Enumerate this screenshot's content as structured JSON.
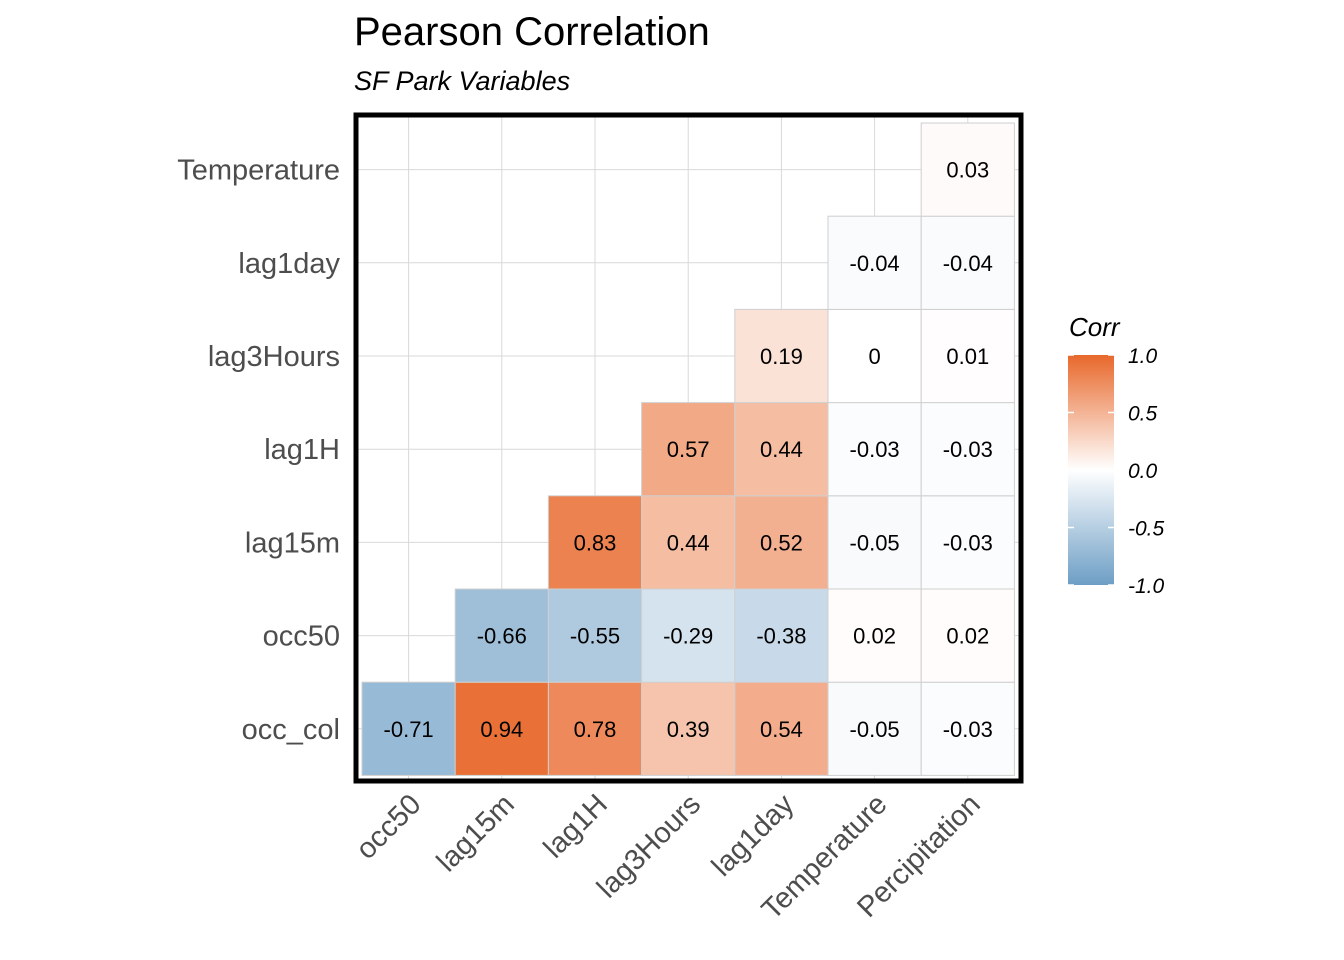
{
  "chart_data": {
    "type": "heatmap",
    "title": "Pearson Correlation",
    "subtitle": "SF Park Variables",
    "x_categories": [
      "occ50",
      "lag15m",
      "lag1H",
      "lag3Hours",
      "lag1day",
      "Temperature",
      "Percipitation"
    ],
    "y_categories": [
      "occ_col",
      "occ50",
      "lag15m",
      "lag1H",
      "lag3Hours",
      "lag1day",
      "Temperature"
    ],
    "cells": [
      {
        "x": "occ50",
        "y": "occ_col",
        "value": -0.71,
        "label": "-0.71"
      },
      {
        "x": "lag15m",
        "y": "occ_col",
        "value": 0.94,
        "label": "0.94"
      },
      {
        "x": "lag1H",
        "y": "occ_col",
        "value": 0.78,
        "label": "0.78"
      },
      {
        "x": "lag3Hours",
        "y": "occ_col",
        "value": 0.39,
        "label": "0.39"
      },
      {
        "x": "lag1day",
        "y": "occ_col",
        "value": 0.54,
        "label": "0.54"
      },
      {
        "x": "Temperature",
        "y": "occ_col",
        "value": -0.05,
        "label": "-0.05"
      },
      {
        "x": "Percipitation",
        "y": "occ_col",
        "value": -0.03,
        "label": "-0.03"
      },
      {
        "x": "lag15m",
        "y": "occ50",
        "value": -0.66,
        "label": "-0.66"
      },
      {
        "x": "lag1H",
        "y": "occ50",
        "value": -0.55,
        "label": "-0.55"
      },
      {
        "x": "lag3Hours",
        "y": "occ50",
        "value": -0.29,
        "label": "-0.29"
      },
      {
        "x": "lag1day",
        "y": "occ50",
        "value": -0.38,
        "label": "-0.38"
      },
      {
        "x": "Temperature",
        "y": "occ50",
        "value": 0.02,
        "label": "0.02"
      },
      {
        "x": "Percipitation",
        "y": "occ50",
        "value": 0.02,
        "label": "0.02"
      },
      {
        "x": "lag1H",
        "y": "lag15m",
        "value": 0.83,
        "label": "0.83"
      },
      {
        "x": "lag3Hours",
        "y": "lag15m",
        "value": 0.44,
        "label": "0.44"
      },
      {
        "x": "lag1day",
        "y": "lag15m",
        "value": 0.52,
        "label": "0.52"
      },
      {
        "x": "Temperature",
        "y": "lag15m",
        "value": -0.05,
        "label": "-0.05"
      },
      {
        "x": "Percipitation",
        "y": "lag15m",
        "value": -0.03,
        "label": "-0.03"
      },
      {
        "x": "lag3Hours",
        "y": "lag1H",
        "value": 0.57,
        "label": "0.57"
      },
      {
        "x": "lag1day",
        "y": "lag1H",
        "value": 0.44,
        "label": "0.44"
      },
      {
        "x": "Temperature",
        "y": "lag1H",
        "value": -0.03,
        "label": "-0.03"
      },
      {
        "x": "Percipitation",
        "y": "lag1H",
        "value": -0.03,
        "label": "-0.03"
      },
      {
        "x": "lag1day",
        "y": "lag3Hours",
        "value": 0.19,
        "label": "0.19"
      },
      {
        "x": "Temperature",
        "y": "lag3Hours",
        "value": 0,
        "label": "0"
      },
      {
        "x": "Percipitation",
        "y": "lag3Hours",
        "value": 0.01,
        "label": "0.01"
      },
      {
        "x": "Temperature",
        "y": "lag1day",
        "value": -0.04,
        "label": "-0.04"
      },
      {
        "x": "Percipitation",
        "y": "lag1day",
        "value": -0.04,
        "label": "-0.04"
      },
      {
        "x": "Percipitation",
        "y": "Temperature",
        "value": 0.03,
        "label": "0.03"
      }
    ],
    "legend": {
      "title": "Corr",
      "ticks": [
        1.0,
        0.5,
        0.0,
        -0.5,
        -1.0
      ],
      "tick_labels": [
        "1.0",
        "0.5",
        "0.0",
        "-0.5",
        "-1.0"
      ],
      "position": "right",
      "low_color": "#6d9ec5",
      "mid_color": "#ffffff",
      "high_color": "#e8682b"
    },
    "value_range": [
      -1,
      1
    ],
    "grid": true,
    "panel_border": true
  }
}
